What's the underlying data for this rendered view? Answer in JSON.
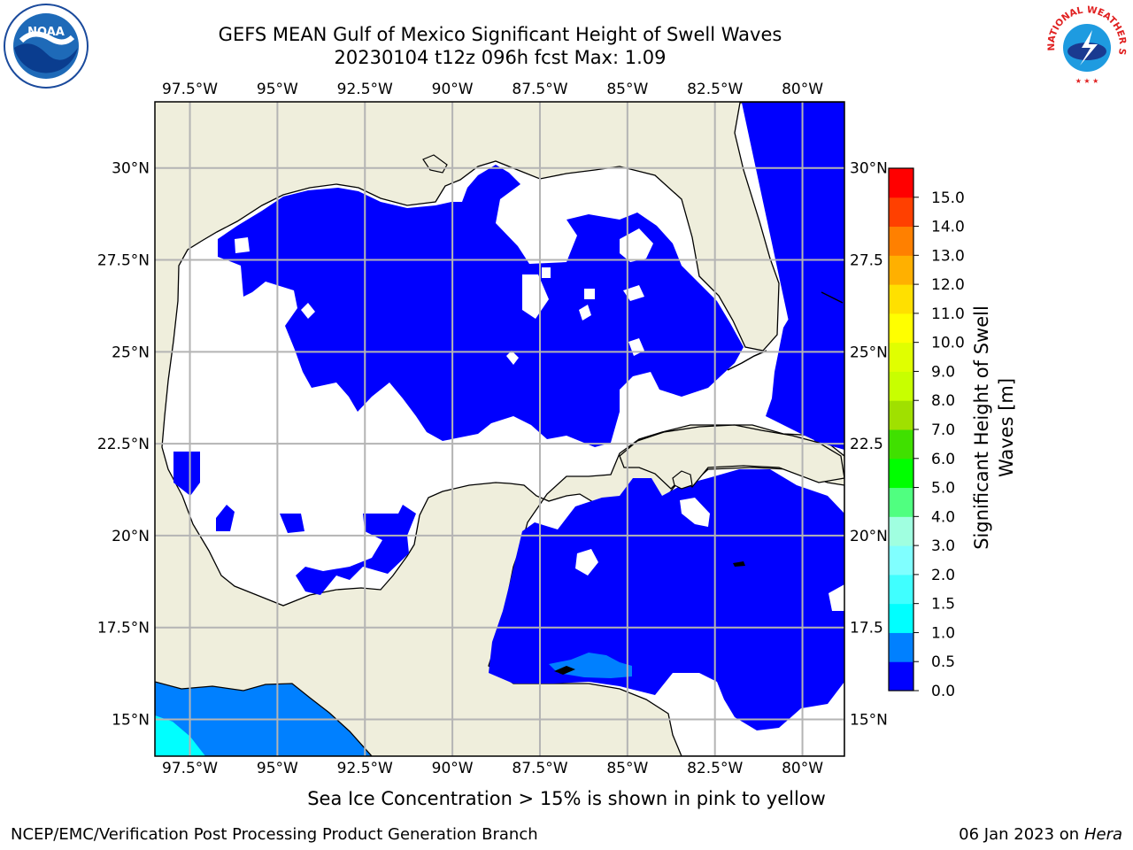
{
  "title_line1": "GEFS MEAN Gulf of Mexico Significant Height of Swell Waves",
  "title_line2": "20230104 t12z 096h fcst   Max: 1.09",
  "map": {
    "lon_range": [
      -98.5,
      -78.8
    ],
    "lat_range": [
      14.0,
      31.8
    ],
    "lon_ticks": [
      "97.5°W",
      "95°W",
      "92.5°W",
      "90°W",
      "87.5°W",
      "85°W",
      "82.5°W",
      "80°W"
    ],
    "lat_ticks": [
      "30°N",
      "27.5°N",
      "25°N",
      "22.5°N",
      "20°N",
      "17.5°N",
      "15°N"
    ],
    "lat_ticks_right": [
      "30°N",
      "27.5",
      "25°N",
      "22.5",
      "20°N",
      "17.5",
      "15°N"
    ],
    "land_color": "#efeedc",
    "grid_color": "#b4b4b4"
  },
  "colorbar": {
    "label_line1": "Significant Height of Swell",
    "label_line2": "Waves [m]",
    "ticks": [
      "0.0",
      "0.5",
      "1.0",
      "1.5",
      "2.0",
      "3.0",
      "4.0",
      "5.0",
      "6.0",
      "7.0",
      "8.0",
      "9.0",
      "10.0",
      "11.0",
      "12.0",
      "13.0",
      "14.0",
      "15.0"
    ],
    "colors": [
      "#0000ff",
      "#0080ff",
      "#00ffff",
      "#40ffff",
      "#80ffff",
      "#a0ffe0",
      "#50ff80",
      "#00ff00",
      "#40e000",
      "#a0e000",
      "#c8ff00",
      "#e0ff00",
      "#ffff00",
      "#ffe000",
      "#ffb000",
      "#ff8000",
      "#ff4000",
      "#ff0000"
    ]
  },
  "note": "Sea Ice Concentration > 15% is shown in pink to yellow",
  "footer_left": "NCEP/EMC/Verification Post Processing Product Generation Branch",
  "footer_date": "06 Jan 2023 on ",
  "footer_machine": "Hera",
  "logos": {
    "noaa": "NOAA",
    "nws": "NATIONAL WEATHER SERVICE"
  }
}
